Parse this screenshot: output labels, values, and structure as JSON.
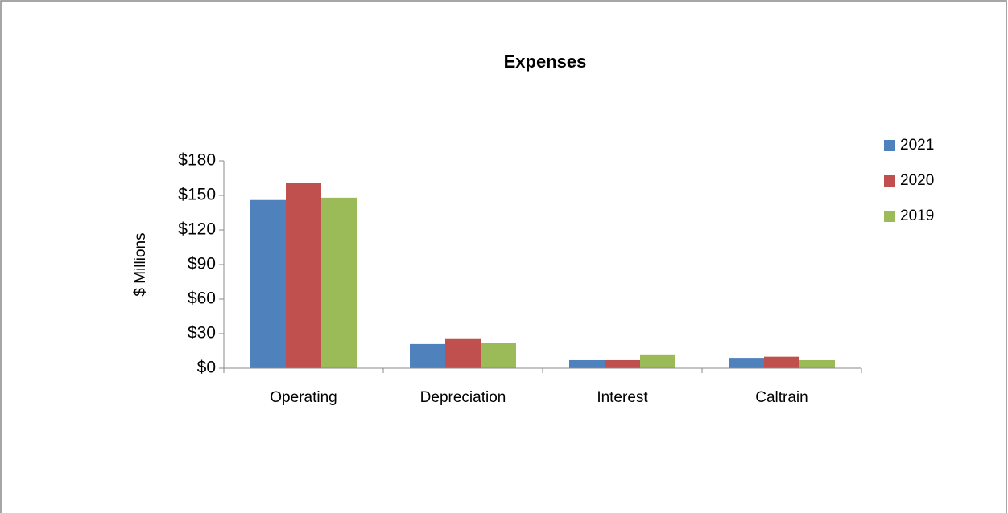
{
  "chart_data": {
    "type": "bar",
    "title": "Expenses",
    "y_label": "$ Millions",
    "categories": [
      "Operating",
      "Depreciation",
      "Interest",
      "Caltrain"
    ],
    "series": [
      {
        "name": "2021",
        "color": "#4f81bd",
        "values": [
          146,
          21,
          7,
          9
        ]
      },
      {
        "name": "2020",
        "color": "#c0504d",
        "values": [
          161,
          26,
          7,
          10
        ]
      },
      {
        "name": "2019",
        "color": "#9bbb59",
        "values": [
          148,
          22,
          12,
          7
        ]
      }
    ],
    "ylim": [
      0,
      180
    ],
    "yticks": [
      {
        "value": 0,
        "label": "$0"
      },
      {
        "value": 30,
        "label": "$30"
      },
      {
        "value": 60,
        "label": "$60"
      },
      {
        "value": 90,
        "label": "$90"
      },
      {
        "value": 120,
        "label": "$120"
      },
      {
        "value": 150,
        "label": "$150"
      },
      {
        "value": 180,
        "label": "$180"
      }
    ],
    "legend": "right"
  }
}
